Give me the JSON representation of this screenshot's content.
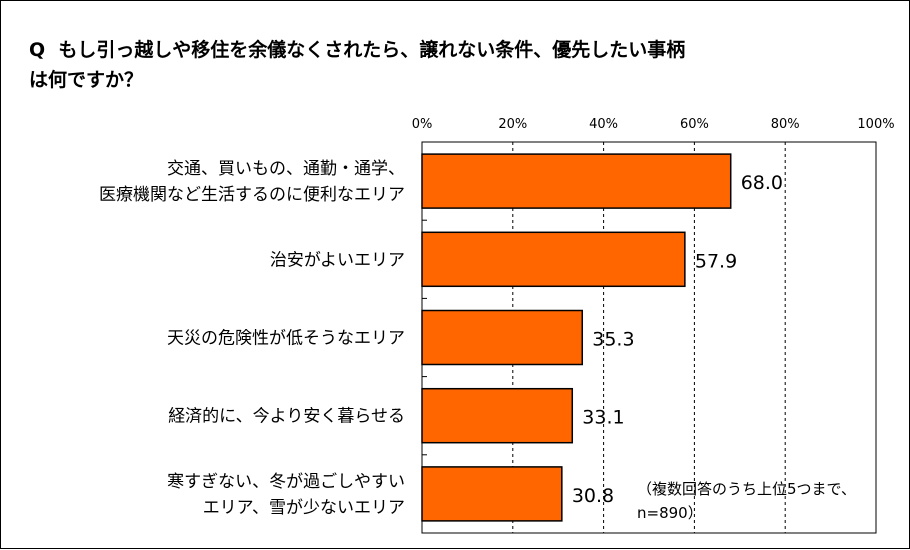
{
  "question": {
    "prefix": "Q",
    "line1": "もし引っ越しや移住を余儀なくされたら、譲れない条件、優先したい事柄",
    "line2": "は何ですか？"
  },
  "note": {
    "line1": "（複数回答のうち上位5つまで、",
    "line2": "n=890）"
  },
  "chart_data": {
    "type": "bar",
    "orientation": "horizontal",
    "unit": "%",
    "xlim": [
      0,
      100
    ],
    "ticks": [
      "0%",
      "20%",
      "40%",
      "60%",
      "80%",
      "100%"
    ],
    "tick_values": [
      0,
      20,
      40,
      60,
      80,
      100
    ],
    "grid": "dashed vertical",
    "bar_color": "#ff6600",
    "categories": [
      [
        "交通、買いもの、通勤・通学、",
        "医療機関など生活するのに便利なエリア"
      ],
      [
        "治安がよいエリア"
      ],
      [
        "天災の危険性が低そうなエリア"
      ],
      [
        "経済的に、今より安く暮らせる"
      ],
      [
        "寒すぎない、冬が過ごしやすい",
        "エリア、雪が少ないエリア"
      ]
    ],
    "values": [
      68.0,
      57.9,
      35.3,
      33.1,
      30.8
    ],
    "value_labels": [
      "68.0",
      "57.9",
      "35.3",
      "33.1",
      "30.8"
    ]
  }
}
